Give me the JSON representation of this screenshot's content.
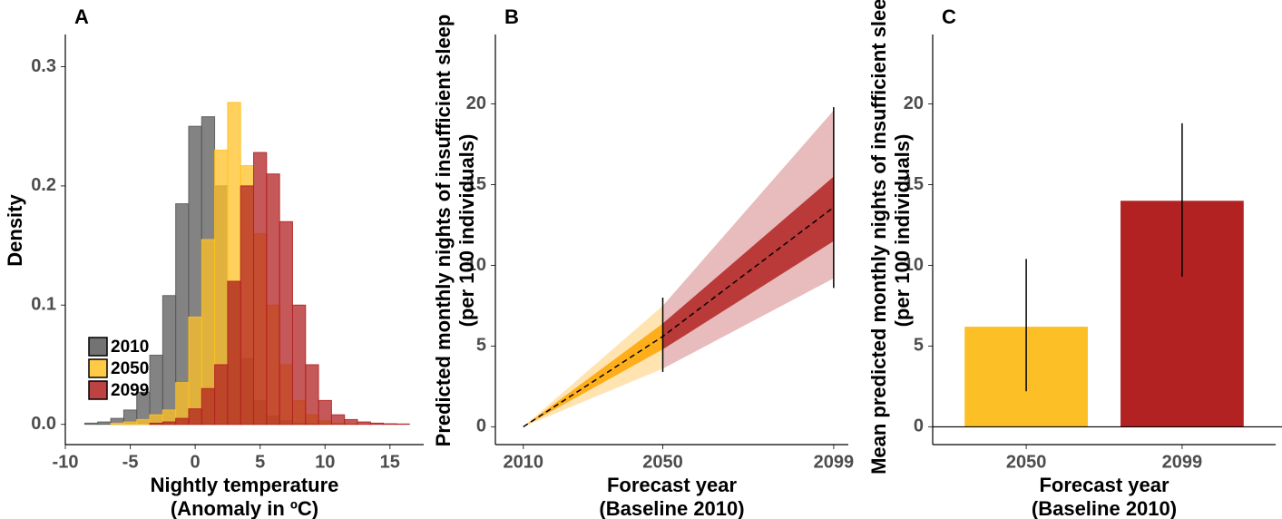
{
  "chart_data": [
    {
      "type": "histogram",
      "panel": "A",
      "xlabel": [
        "Nightly temperature",
        "(Anomaly in ºC)"
      ],
      "ylabel": [
        "Density"
      ],
      "bins": [
        -8.5,
        -7.5,
        -6.5,
        -5.5,
        -4.5,
        -3.5,
        -2.5,
        -1.5,
        -0.5,
        0.5,
        1.5,
        2.5,
        3.5,
        4.5,
        5.5,
        6.5,
        7.5,
        8.5,
        9.5,
        10.5,
        11.5,
        12.5,
        13.5,
        14.5,
        15.5,
        16.5
      ],
      "series": [
        {
          "name": "2010",
          "color": "#5a5a5a",
          "values": [
            0.001,
            0.002,
            0.005,
            0.012,
            0.027,
            0.058,
            0.108,
            0.185,
            0.25,
            0.258,
            0.2,
            0.12,
            0.055,
            0.02,
            0.007,
            0.003,
            0.001,
            0.0005,
            0,
            0,
            0,
            0,
            0,
            0,
            0
          ]
        },
        {
          "name": "2050",
          "color": "#ffc125",
          "values": [
            0,
            0,
            0.001,
            0.002,
            0.004,
            0.008,
            0.012,
            0.035,
            0.09,
            0.155,
            0.23,
            0.27,
            0.217,
            0.16,
            0.1,
            0.05,
            0.02,
            0.008,
            0.003,
            0.001,
            0.0005,
            0,
            0,
            0,
            0
          ]
        },
        {
          "name": "2099",
          "color": "#b22222",
          "values": [
            0,
            0,
            0,
            0,
            0,
            0.001,
            0.002,
            0.005,
            0.013,
            0.03,
            0.05,
            0.12,
            0.2,
            0.228,
            0.21,
            0.17,
            0.1,
            0.05,
            0.02,
            0.008,
            0.004,
            0.002,
            0.001,
            0.0005,
            0.0003
          ]
        }
      ],
      "xlim": [
        -10,
        17.6
      ],
      "xticks": [
        -10,
        -5,
        0,
        5,
        10,
        15
      ],
      "ylim": [
        -0.017,
        0.327
      ],
      "yticks": [
        {
          "value": 0,
          "label": "0.0"
        },
        {
          "value": 0.1,
          "label": "0.1"
        },
        {
          "value": 0.2,
          "label": "0.2"
        },
        {
          "value": 0.3,
          "label": "0.3"
        }
      ],
      "legend": "bottom-left"
    },
    {
      "type": "fan",
      "panel": "B",
      "xlabel": [
        "Forecast year",
        "(Baseline 2010)"
      ],
      "ylabel": [
        "Predicted monthly nights of insufficient sleep",
        "(per 100 individuals)"
      ],
      "x": [
        2010,
        2050,
        2099
      ],
      "mean": [
        0,
        5.6,
        13.6
      ],
      "band_low": [
        0,
        3.6,
        9.2
      ],
      "band_high": [
        0,
        7.5,
        19.6
      ],
      "core_low": [
        0,
        4.8,
        11.5
      ],
      "core_high": [
        0,
        6.4,
        15.5
      ],
      "ci_low": [
        null,
        3.4,
        8.6
      ],
      "ci_high": [
        null,
        8.0,
        19.8
      ],
      "colors": [
        "#ffa500",
        "#b22222"
      ],
      "xlim": [
        2002,
        2103.2
      ],
      "xticks": [
        2010,
        2050,
        2099
      ],
      "ylim": [
        -1.1,
        24.3
      ],
      "yticks": [
        0,
        5,
        10,
        15,
        20
      ]
    },
    {
      "type": "bar",
      "panel": "C",
      "xlabel": [
        "Forecast year",
        "(Baseline 2010)"
      ],
      "ylabel": [
        "Mean predicted monthly nights of insufficient sleep",
        "(per 100 individuals)"
      ],
      "categories": [
        "2050",
        "2099"
      ],
      "values": [
        6.2,
        14.0
      ],
      "ci_low": [
        2.2,
        9.3
      ],
      "ci_high": [
        10.4,
        18.8
      ],
      "colors": [
        "#fdbf26",
        "#b22222"
      ],
      "ylim": [
        -1.1,
        24.3
      ],
      "yticks": [
        0,
        5,
        10,
        15,
        20
      ]
    }
  ]
}
